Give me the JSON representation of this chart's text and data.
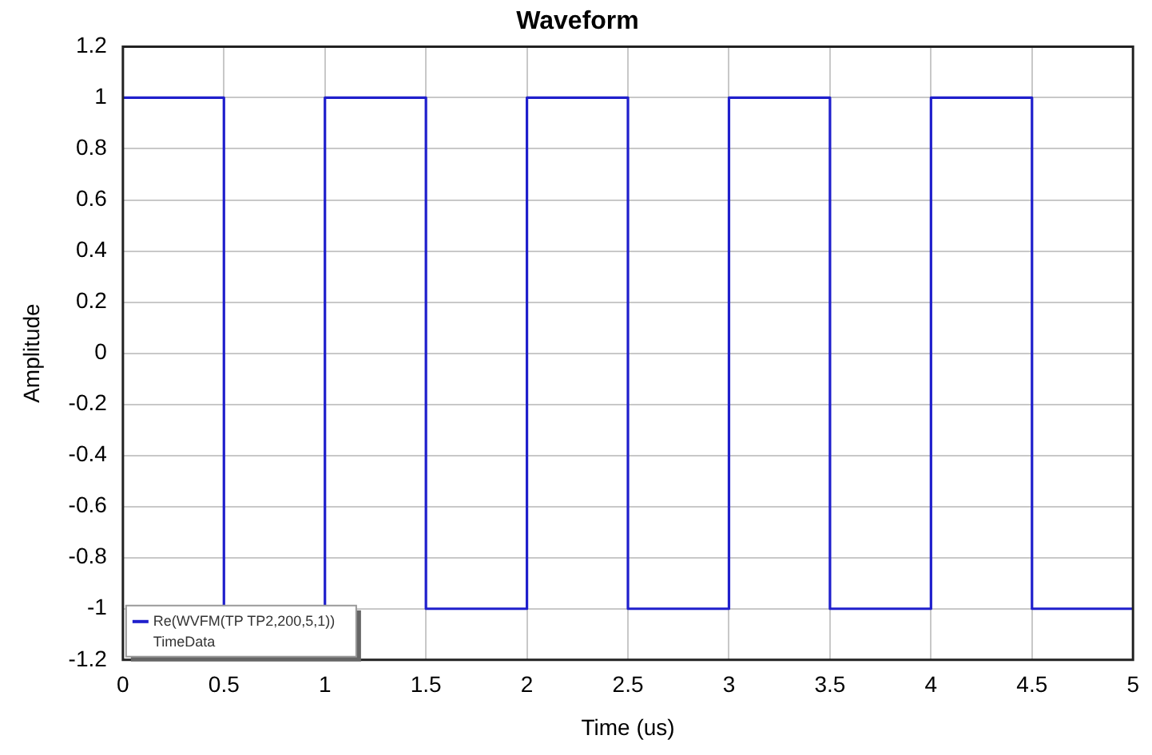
{
  "chart_data": {
    "type": "step",
    "title": "Waveform",
    "xlabel": "Time (us)",
    "ylabel": "Amplitude",
    "x": [
      0,
      0.5,
      1,
      1.5,
      2,
      2.5,
      3,
      3.5,
      4,
      4.5,
      5
    ],
    "series": [
      {
        "name": "Re(WVFM(TP TP2,200,5,1))",
        "color": "#1f1fcc",
        "values": [
          1,
          -1,
          1,
          -1,
          1,
          -1,
          1,
          -1,
          1,
          -1,
          -1
        ]
      }
    ],
    "annotations": [
      "TimeData"
    ],
    "xlim": [
      0,
      5
    ],
    "xticks": [
      0,
      0.5,
      1,
      1.5,
      2,
      2.5,
      3,
      3.5,
      4,
      4.5,
      5
    ],
    "ylim": [
      -1.2,
      1.2
    ],
    "yticks": [
      -1.2,
      -1,
      -0.8,
      -0.6,
      -0.4,
      -0.2,
      0,
      0.2,
      0.4,
      0.6,
      0.8,
      1,
      1.2
    ],
    "grid": true,
    "legend": "bottom left",
    "marker": "none",
    "line_style": "solid"
  }
}
